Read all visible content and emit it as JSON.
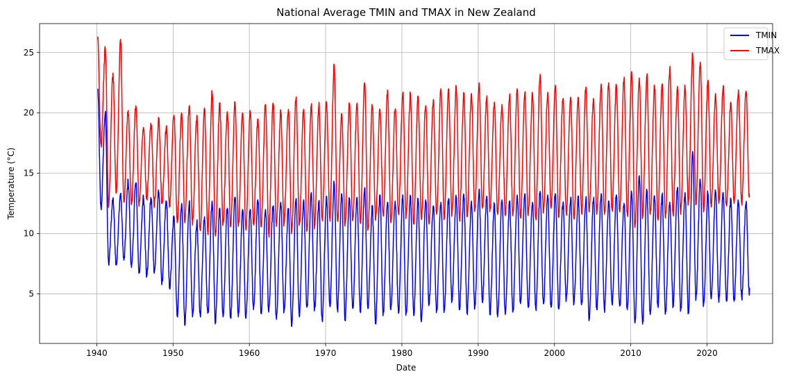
{
  "chart_data": {
    "type": "line",
    "title": "National Average TMIN and TMAX in New Zealand",
    "xlabel": "Date",
    "ylabel": "Temperature (°C)",
    "xlim": [
      1932.5,
      2028.6
    ],
    "ylim": [
      0.9,
      27.4
    ],
    "x_ticks": [
      1940,
      1950,
      1960,
      1970,
      1980,
      1990,
      2000,
      2010,
      2020
    ],
    "x_tick_labels": [
      "1940",
      "1950",
      "1960",
      "1970",
      "1980",
      "1990",
      "2000",
      "2010",
      "2020"
    ],
    "y_ticks": [
      5,
      10,
      15,
      20,
      25
    ],
    "y_tick_labels": [
      "5",
      "10",
      "15",
      "20",
      "25"
    ],
    "grid": true,
    "legend_position": "top-right",
    "series": [
      {
        "name": "TMIN",
        "color": "#0000ff",
        "year_start": 1940,
        "summer_peaks": [
          22.0,
          20.0,
          12.9,
          13.3,
          14.3,
          14.2,
          13.0,
          12.9,
          13.4,
          12.7,
          11.3,
          12.5,
          12.6,
          10.9,
          11.4,
          12.7,
          12.1,
          12.1,
          13.0,
          12.0,
          12.0,
          12.8,
          12.0,
          12.3,
          12.6,
          12.0,
          12.9,
          12.8,
          13.4,
          12.6,
          13.1,
          14.2,
          13.3,
          12.9,
          13.0,
          13.8,
          12.1,
          13.2,
          12.6,
          12.7,
          13.2,
          13.1,
          12.9,
          12.8,
          12.3,
          12.6,
          12.9,
          13.0,
          13.2,
          12.7,
          13.5,
          13.1,
          12.4,
          12.8,
          12.6,
          13.2,
          13.3,
          12.6,
          13.5,
          13.2,
          13.3,
          12.5,
          12.9,
          13.0,
          12.9,
          12.8,
          13.3,
          12.7,
          13.2,
          12.5,
          13.4,
          14.8,
          13.6,
          13.1,
          13.2,
          12.6,
          13.8,
          13.4,
          16.8,
          14.4,
          13.3,
          13.4,
          13.4,
          12.9,
          12.6,
          12.5
        ],
        "winter_troughs": [
          12.1,
          7.5,
          7.5,
          7.8,
          7.2,
          6.8,
          6.5,
          6.9,
          5.9,
          5.6,
          3.3,
          2.4,
          3.1,
          3.3,
          3.4,
          2.7,
          3.1,
          3.0,
          3.1,
          3.0,
          3.7,
          3.5,
          3.5,
          2.9,
          3.6,
          2.3,
          3.1,
          3.9,
          3.8,
          2.8,
          4.0,
          3.7,
          2.9,
          3.8,
          3.5,
          3.8,
          2.7,
          3.4,
          3.7,
          3.4,
          3.4,
          3.2,
          2.7,
          4.2,
          3.6,
          3.6,
          4.4,
          3.9,
          3.5,
          3.8,
          4.3,
          3.4,
          3.1,
          3.3,
          3.5,
          4.2,
          3.9,
          3.8,
          4.2,
          3.9,
          3.9,
          4.5,
          4.2,
          4.1,
          2.9,
          3.7,
          3.7,
          4.2,
          4.0,
          3.7,
          2.6,
          2.5,
          3.3,
          4.0,
          3.4,
          4.1,
          3.7,
          3.5,
          4.6,
          4.1,
          4.6,
          4.3,
          4.4,
          4.4,
          4.7,
          4.9
        ]
      },
      {
        "name": "TMAX",
        "color": "#ff0000",
        "year_start": 1940,
        "summer_peaks": [
          26.1,
          25.3,
          23.3,
          26.1,
          20.2,
          20.6,
          18.8,
          19.0,
          19.4,
          18.9,
          19.8,
          20.0,
          20.6,
          19.8,
          20.4,
          21.7,
          20.8,
          20.1,
          20.9,
          20.0,
          20.1,
          19.5,
          20.7,
          20.8,
          20.1,
          20.3,
          21.2,
          20.3,
          20.6,
          20.7,
          20.9,
          24.0,
          19.9,
          20.7,
          20.8,
          22.5,
          20.5,
          20.3,
          21.9,
          20.3,
          21.6,
          21.6,
          21.3,
          20.6,
          21.1,
          22.0,
          22.0,
          22.2,
          21.5,
          21.6,
          22.5,
          21.3,
          20.9,
          20.7,
          21.5,
          22.0,
          21.7,
          21.6,
          23.2,
          21.7,
          22.3,
          21.2,
          21.3,
          21.3,
          22.1,
          21.2,
          22.4,
          22.5,
          22.3,
          22.8,
          23.4,
          22.9,
          23.1,
          22.2,
          22.4,
          23.7,
          22.2,
          22.1,
          24.9,
          24.2,
          22.6,
          21.6,
          22.2,
          20.8,
          21.9,
          21.8
        ],
        "winter_troughs": [
          17.4,
          12.3,
          13.4,
          12.6,
          12.4,
          12.5,
          13.0,
          12.4,
          12.5,
          12.4,
          10.9,
          11.1,
          10.7,
          10.3,
          10.1,
          9.8,
          10.8,
          10.6,
          10.6,
          10.3,
          10.9,
          10.8,
          9.9,
          10.6,
          10.8,
          10.2,
          10.8,
          10.3,
          10.6,
          11.2,
          11.2,
          11.1,
          10.8,
          11.1,
          10.9,
          10.4,
          11.1,
          11.5,
          10.9,
          11.7,
          11.4,
          10.8,
          11.2,
          10.8,
          11.6,
          11.2,
          11.5,
          11.2,
          11.5,
          11.9,
          12.1,
          12.0,
          11.6,
          11.5,
          11.5,
          11.3,
          11.5,
          11.3,
          11.7,
          12.1,
          11.5,
          11.7,
          11.3,
          11.8,
          11.8,
          11.6,
          11.6,
          12.0,
          11.8,
          11.6,
          10.5,
          11.3,
          11.6,
          11.3,
          11.3,
          11.6,
          11.6,
          12.5,
          12.4,
          11.8,
          12.2,
          12.5,
          12.3,
          12.5,
          12.5,
          13.0
        ]
      }
    ]
  }
}
